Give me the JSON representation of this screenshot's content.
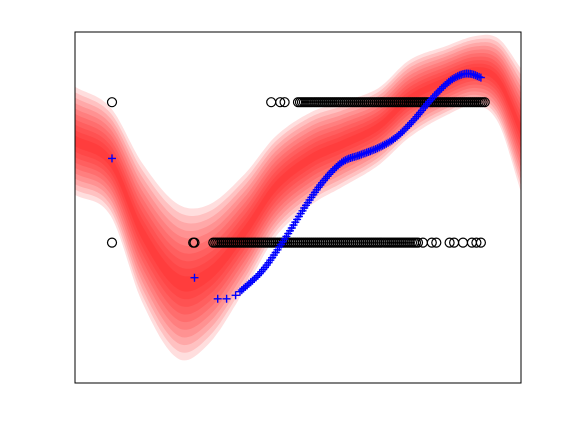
{
  "chart_data": {
    "type": "scatter",
    "title": "",
    "xlabel": "",
    "ylabel": "",
    "grid": false,
    "legend": "none",
    "xlim": [
      0,
      1
    ],
    "ylim": [
      0,
      1
    ],
    "colors": {
      "band": "#ff0000",
      "predicted": "#0000ff",
      "observed": "#000000",
      "frame": "#000000"
    },
    "band": {
      "x": [
        0.0,
        0.08,
        0.15,
        0.23,
        0.3,
        0.38,
        0.45,
        0.53,
        0.6,
        0.68,
        0.75,
        0.83,
        0.9,
        0.95,
        1.0
      ],
      "mean": [
        0.69,
        0.63,
        0.43,
        0.29,
        0.31,
        0.43,
        0.56,
        0.64,
        0.68,
        0.73,
        0.81,
        0.86,
        0.89,
        0.86,
        0.72
      ],
      "std": [
        0.07,
        0.07,
        0.09,
        0.1,
        0.09,
        0.075,
        0.065,
        0.06,
        0.055,
        0.05,
        0.05,
        0.045,
        0.045,
        0.055,
        0.08
      ],
      "levels": 10
    },
    "series": [
      {
        "role": "observed",
        "marker": "circle",
        "points": [
          [
            0.083,
            0.8
          ],
          [
            0.265,
            0.4
          ],
          [
            0.083,
            0.4
          ],
          [
            0.268,
            0.4
          ],
          {
            "cluster": true,
            "x_from": 0.31,
            "x_to": 0.77,
            "y": 0.4,
            "step": 0.0045
          },
          [
            0.78,
            0.4
          ],
          [
            0.8,
            0.4
          ],
          [
            0.81,
            0.4
          ],
          [
            0.84,
            0.4
          ],
          [
            0.85,
            0.4
          ],
          [
            0.87,
            0.4
          ],
          [
            0.89,
            0.4
          ],
          [
            0.9,
            0.4
          ],
          [
            0.91,
            0.4
          ],
          [
            0.44,
            0.8
          ],
          [
            0.46,
            0.8
          ],
          [
            0.47,
            0.8
          ],
          {
            "cluster": true,
            "x_from": 0.5,
            "x_to": 0.92,
            "y": 0.8,
            "step": 0.0045
          }
        ]
      },
      {
        "role": "predicted",
        "marker": "plus",
        "points": [
          [
            0.083,
            0.64
          ],
          [
            0.268,
            0.3
          ],
          [
            0.32,
            0.24
          ],
          [
            0.34,
            0.24
          ],
          [
            0.36,
            0.25
          ]
        ],
        "curve": {
          "x_from": 0.37,
          "x_to": 0.91,
          "step": 0.004,
          "knots_x": [
            0.37,
            0.42,
            0.47,
            0.52,
            0.56,
            0.6,
            0.64,
            0.68,
            0.72,
            0.76,
            0.8,
            0.84,
            0.87,
            0.89,
            0.91
          ],
          "knots_y": [
            0.26,
            0.32,
            0.41,
            0.51,
            0.58,
            0.63,
            0.65,
            0.67,
            0.7,
            0.75,
            0.81,
            0.86,
            0.88,
            0.88,
            0.87
          ]
        }
      }
    ]
  }
}
